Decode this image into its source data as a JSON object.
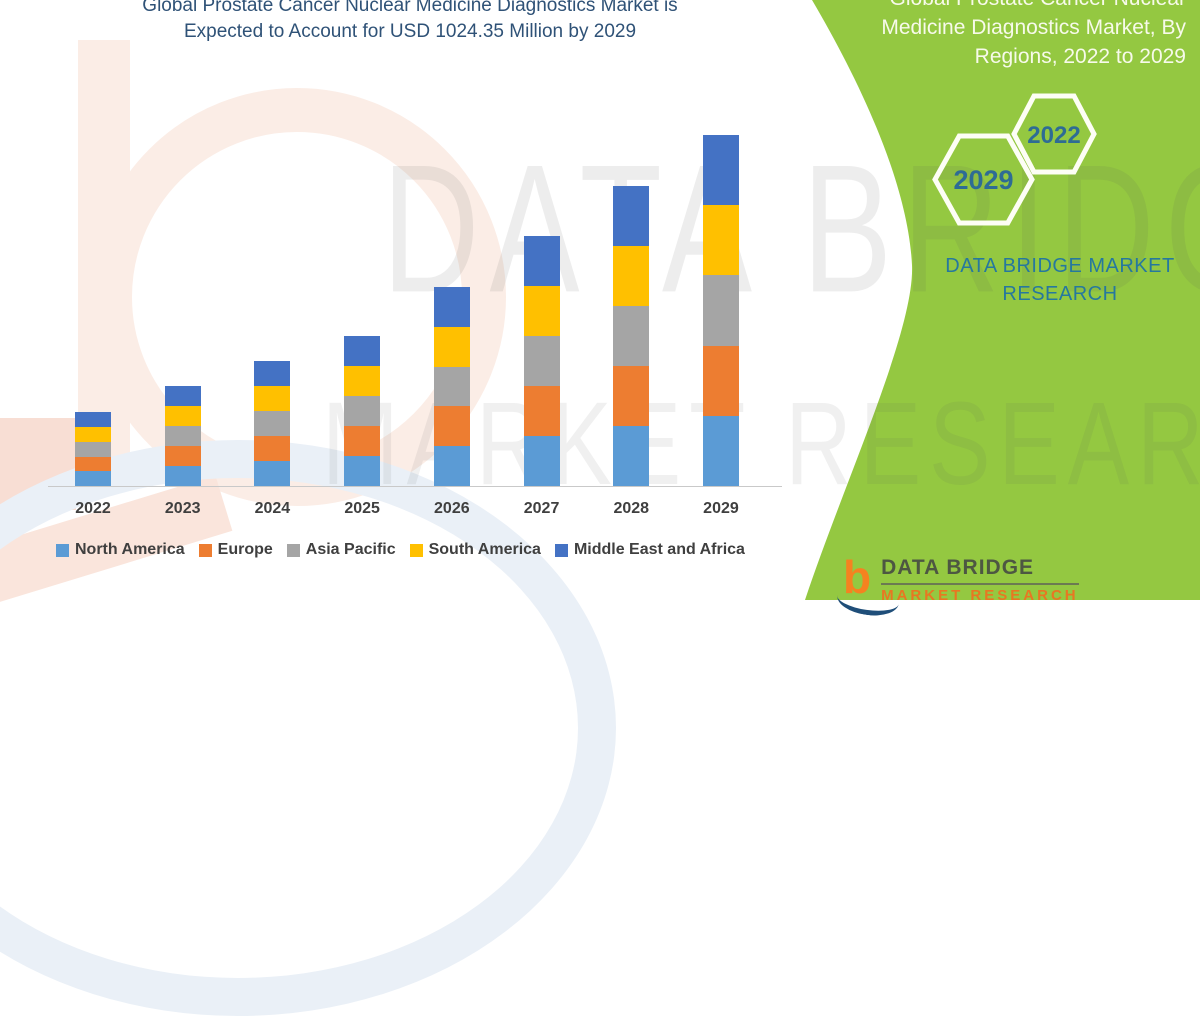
{
  "header": {
    "title_line1": "Global Prostate Cancer Nuclear Medicine Diagnostics Market is",
    "title_line2": "Expected to Account for USD 1024.35 Million by 2029"
  },
  "side_panel": {
    "bg_color": "#94C841",
    "title_line1": "Global Prostate Cancer Nuclear",
    "title_line2": "Medicine Diagnostics Market, By",
    "title_line3": "Regions, 2022 to 2029",
    "hexagons": [
      {
        "label": "2029"
      },
      {
        "label": "2022"
      }
    ],
    "brand_line1": "DATA BRIDGE MARKET",
    "brand_line2": "RESEARCH"
  },
  "watermark": {
    "line1": "DATA BRIDGE",
    "line2": "MARKET RESEARCH"
  },
  "footer_logo": {
    "icon_letter": "b",
    "name": "DATA BRIDGE",
    "sub": "MARKET RESEARCH"
  },
  "chart_data": {
    "type": "bar",
    "stacked": true,
    "title": "Global Prostate Cancer Nuclear Medicine Diagnostics Market is Expected to Account for USD 1024.35 Million by 2029",
    "unit": "USD Million",
    "categories": [
      "2022",
      "2023",
      "2024",
      "2025",
      "2026",
      "2027",
      "2028",
      "2029"
    ],
    "series": [
      {
        "name": "North America",
        "color": "#5B9BD5",
        "values": [
          43.0,
          58.2,
          73.2,
          87.8,
          116.2,
          146.0,
          175.0,
          204.87
        ]
      },
      {
        "name": "Europe",
        "color": "#ED7D31",
        "values": [
          43.0,
          58.2,
          73.2,
          87.8,
          116.2,
          146.0,
          175.0,
          204.87
        ]
      },
      {
        "name": "Asia Pacific",
        "color": "#A5A5A5",
        "values": [
          43.0,
          58.2,
          73.2,
          87.8,
          116.2,
          146.0,
          175.0,
          204.87
        ]
      },
      {
        "name": "South America",
        "color": "#FFC000",
        "values": [
          43.0,
          58.2,
          73.2,
          87.8,
          116.2,
          146.0,
          175.0,
          204.87
        ]
      },
      {
        "name": "Middle East and Africa",
        "color": "#4472C4",
        "values": [
          43.0,
          58.2,
          73.2,
          87.8,
          116.2,
          146.0,
          175.0,
          204.87
        ]
      }
    ],
    "totals": [
      215,
      291,
      366,
      439,
      581,
      730,
      875,
      1024.35
    ],
    "ylim": [
      0,
      1060
    ],
    "grid": false,
    "y_axis_visible": false,
    "legend_position": "bottom"
  }
}
